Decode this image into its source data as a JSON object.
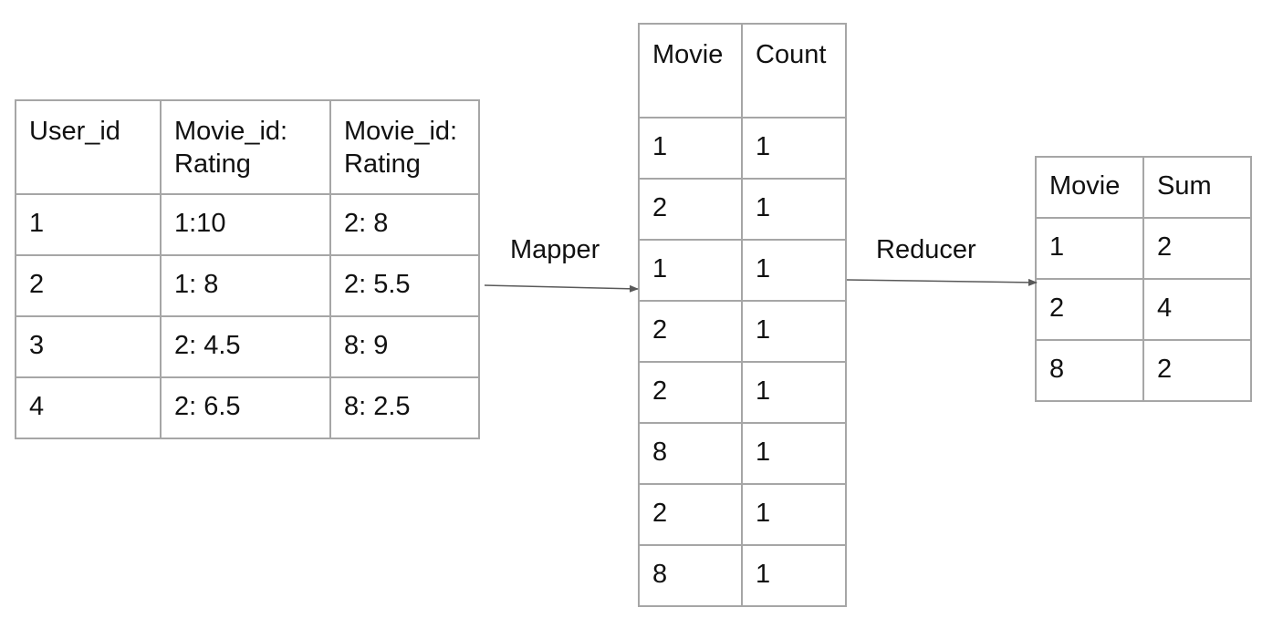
{
  "ratings_table": {
    "headers": [
      "User_id",
      "Movie_id:\nRating",
      "Movie_id:\nRating"
    ],
    "rows": [
      [
        "1",
        "1:10",
        "2: 8"
      ],
      [
        "2",
        "1: 8",
        "2: 5.5"
      ],
      [
        "3",
        "2: 4.5",
        "8: 9"
      ],
      [
        "4",
        "2: 6.5",
        "8: 2.5"
      ]
    ]
  },
  "mapper_label": "Mapper",
  "mapper_table": {
    "headers": [
      "Movie",
      "Count"
    ],
    "rows": [
      [
        "1",
        "1"
      ],
      [
        "2",
        "1"
      ],
      [
        "1",
        "1"
      ],
      [
        "2",
        "1"
      ],
      [
        "2",
        "1"
      ],
      [
        "8",
        "1"
      ],
      [
        "2",
        "1"
      ],
      [
        "8",
        "1"
      ]
    ]
  },
  "reducer_label": "Reducer",
  "reducer_table": {
    "headers": [
      "Movie",
      "Sum"
    ],
    "rows": [
      [
        "1",
        "2"
      ],
      [
        "2",
        "4"
      ],
      [
        "8",
        "2"
      ]
    ]
  },
  "colors": {
    "border": "#a6a6a6",
    "arrow": "#595959",
    "text": "#111111"
  }
}
